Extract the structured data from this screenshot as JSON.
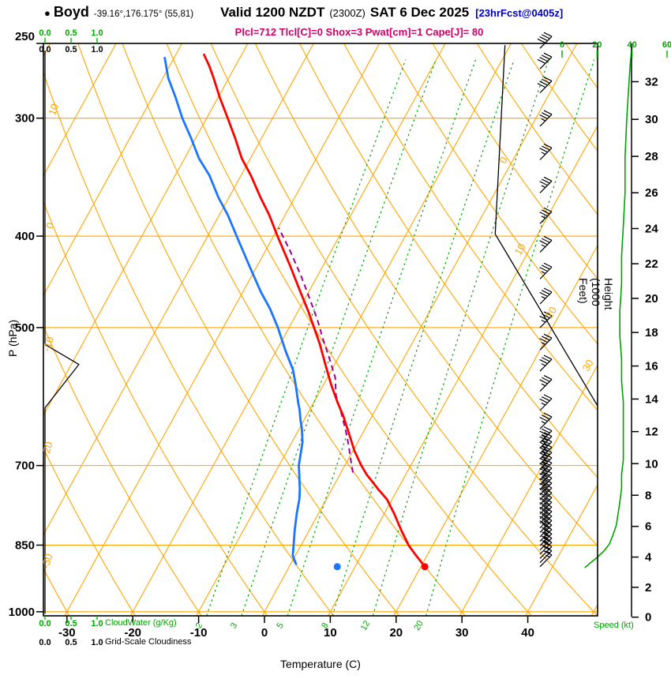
{
  "header": {
    "bullet": "●",
    "station": "Boyd",
    "coordinates": "-39.16°,176.175° (55,81)",
    "valid_label": "Valid 1200 NZDT",
    "valid_utc": "(2300Z)",
    "valid_date": "SAT 6 Dec 2025",
    "forecast_info": "[23hrFcst@0405z]",
    "indices": "Plcl=712 Tlcl[C]=0 Shox=3 Pwat[cm]=1 Cape[J]= 80"
  },
  "axis_labels": {
    "pressure": "P (hPa)",
    "temperature": "Temperature (C)",
    "height": "Height (1000 Feet)",
    "cloudwater": "CloudWater (g/Kg)",
    "gridscale": "Grid-Scale Cloudiness",
    "speed": "Speed (kt)"
  },
  "colors": {
    "grid": "#ffa500",
    "mixing": "#00a400",
    "temperature": "#ff0000",
    "dewpoint": "#1a75ff",
    "parcel": "#990099",
    "indices": "#cc0066",
    "forecast": "#0000bb"
  },
  "chart_data": {
    "type": "line",
    "variant": "skew-t-log-p-sounding",
    "title": "Boyd forecast sounding",
    "xlabel": "Temperature (C)",
    "ylabel": "P (hPa)",
    "pressure_range": [
      250,
      1010
    ],
    "temperature_ticks": [
      -30,
      -20,
      -10,
      0,
      10,
      20,
      30,
      40
    ],
    "pressure_ticks": [
      250,
      300,
      400,
      500,
      700,
      850,
      1000
    ],
    "isobars": [
      300,
      400,
      500,
      700,
      850,
      1000
    ],
    "isotherms": {
      "min": -80,
      "max": 50,
      "step": 10,
      "label_y": {
        "0": 205,
        "10": 318,
        "20": 398,
        "30": 465
      }
    },
    "dry_adiabats": {
      "min": -40,
      "max": 140,
      "step": 10,
      "label_y": {
        "10": 140,
        "0": 287,
        "-10": 437,
        "-20": 570,
        "-30": 712
      }
    },
    "mixing_ratio_gkg": [
      2,
      3,
      5,
      8,
      12,
      20
    ],
    "height_ticks_kft": [
      0,
      2,
      4,
      6,
      8,
      10,
      12,
      14,
      16,
      18,
      20,
      22,
      24,
      26,
      28,
      30,
      32
    ],
    "speed_ticks_kt": [
      0,
      20,
      40,
      60
    ],
    "cloud_scale": [
      "0.0",
      "0.5",
      "1.0"
    ],
    "series": {
      "temperature": [
        [
          896,
          20.6
        ],
        [
          866,
          17.8
        ],
        [
          851,
          16.4
        ],
        [
          820,
          14.0
        ],
        [
          787,
          11.5
        ],
        [
          760,
          9.2
        ],
        [
          743,
          7.2
        ],
        [
          715,
          4.0
        ],
        [
          700,
          2.5
        ],
        [
          675,
          0.2
        ],
        [
          648,
          -2.0
        ],
        [
          620,
          -4.4
        ],
        [
          601,
          -6.3
        ],
        [
          575,
          -8.8
        ],
        [
          546,
          -11.5
        ],
        [
          520,
          -14.0
        ],
        [
          500,
          -16.2
        ],
        [
          480,
          -18.5
        ],
        [
          458,
          -21.3
        ],
        [
          430,
          -25.0
        ],
        [
          400,
          -29.4
        ],
        [
          380,
          -32.4
        ],
        [
          364,
          -35.2
        ],
        [
          345,
          -38.5
        ],
        [
          331,
          -41.3
        ],
        [
          315,
          -44.0
        ],
        [
          300,
          -46.8
        ],
        [
          285,
          -49.8
        ],
        [
          272,
          -52.3
        ],
        [
          264,
          -54.0
        ],
        [
          257,
          -55.7
        ]
      ],
      "dewpoint": [
        [
          890,
          0.8
        ],
        [
          872,
          -0.4
        ],
        [
          851,
          -1.1
        ],
        [
          820,
          -2.2
        ],
        [
          787,
          -3.3
        ],
        [
          760,
          -4.1
        ],
        [
          743,
          -4.8
        ],
        [
          715,
          -6.2
        ],
        [
          700,
          -7.0
        ],
        [
          680,
          -7.7
        ],
        [
          661,
          -8.4
        ],
        [
          640,
          -9.6
        ],
        [
          627,
          -10.5
        ],
        [
          610,
          -11.6
        ],
        [
          601,
          -12.3
        ],
        [
          575,
          -14.2
        ],
        [
          554,
          -15.9
        ],
        [
          530,
          -18.5
        ],
        [
          500,
          -21.7
        ],
        [
          478,
          -24.4
        ],
        [
          458,
          -27.3
        ],
        [
          430,
          -31.2
        ],
        [
          400,
          -35.6
        ],
        [
          380,
          -38.7
        ],
        [
          364,
          -41.6
        ],
        [
          345,
          -44.8
        ],
        [
          331,
          -47.8
        ],
        [
          315,
          -50.7
        ],
        [
          300,
          -53.7
        ],
        [
          285,
          -56.5
        ],
        [
          272,
          -59.2
        ],
        [
          259,
          -61.4
        ]
      ],
      "parcel": [
        [
          712,
          1.8
        ],
        [
          690,
          0.4
        ],
        [
          665,
          -1.2
        ],
        [
          640,
          -3.0
        ],
        [
          615,
          -5.0
        ],
        [
          590,
          -7.2
        ],
        [
          565,
          -8.8
        ],
        [
          540,
          -11.2
        ],
        [
          515,
          -13.8
        ],
        [
          490,
          -16.4
        ],
        [
          465,
          -19.4
        ],
        [
          440,
          -22.6
        ],
        [
          415,
          -26.2
        ],
        [
          400,
          -28.6
        ],
        [
          392,
          -29.9
        ]
      ],
      "wind_speed_kt": [
        [
          898,
          13
        ],
        [
          888,
          16
        ],
        [
          876,
          20
        ],
        [
          862,
          24
        ],
        [
          848,
          27
        ],
        [
          830,
          29
        ],
        [
          810,
          31
        ],
        [
          788,
          32
        ],
        [
          765,
          33
        ],
        [
          740,
          34
        ],
        [
          715,
          34
        ],
        [
          690,
          35
        ],
        [
          660,
          35
        ],
        [
          630,
          35
        ],
        [
          600,
          35
        ],
        [
          570,
          34
        ],
        [
          540,
          34
        ],
        [
          510,
          33
        ],
        [
          480,
          33
        ],
        [
          450,
          34
        ],
        [
          420,
          34
        ],
        [
          390,
          35
        ],
        [
          360,
          36
        ],
        [
          330,
          36
        ],
        [
          300,
          37
        ],
        [
          280,
          38
        ],
        [
          262,
          39
        ],
        [
          252,
          40
        ]
      ],
      "cloudiness": [
        [
          1005,
          0
        ],
        [
          608,
          0
        ],
        [
          547,
          0.65
        ],
        [
          521,
          0
        ],
        [
          255,
          0
        ]
      ],
      "reference_line": [
        [
          251,
          -10.8
        ],
        [
          398,
          3.5
        ],
        [
          612,
          34.2
        ]
      ]
    },
    "surface_dots": {
      "temperature": [
        896,
        20.6
      ],
      "dewpoint": [
        896,
        7.3
      ]
    },
    "wind_barbs": [
      [
        896,
        15
      ],
      [
        887,
        17
      ],
      [
        878,
        19
      ],
      [
        869,
        21
      ],
      [
        860,
        23
      ],
      [
        851,
        25
      ],
      [
        842,
        26
      ],
      [
        833,
        27
      ],
      [
        824,
        28
      ],
      [
        815,
        29
      ],
      [
        806,
        30
      ],
      [
        797,
        30
      ],
      [
        788,
        31
      ],
      [
        779,
        31
      ],
      [
        770,
        32
      ],
      [
        761,
        32
      ],
      [
        752,
        33
      ],
      [
        743,
        33
      ],
      [
        734,
        33
      ],
      [
        725,
        34
      ],
      [
        716,
        34
      ],
      [
        707,
        34
      ],
      [
        698,
        35
      ],
      [
        689,
        35
      ],
      [
        680,
        35
      ],
      [
        671,
        35
      ],
      [
        662,
        36
      ],
      [
        640,
        35
      ],
      [
        612,
        35
      ],
      [
        584,
        34
      ],
      [
        556,
        34
      ],
      [
        528,
        33
      ],
      [
        500,
        33
      ],
      [
        472,
        33
      ],
      [
        444,
        34
      ],
      [
        416,
        34
      ],
      [
        388,
        35
      ],
      [
        360,
        35
      ],
      [
        332,
        36
      ],
      [
        306,
        37
      ],
      [
        282,
        38
      ],
      [
        266,
        39
      ],
      [
        253,
        40
      ]
    ]
  }
}
